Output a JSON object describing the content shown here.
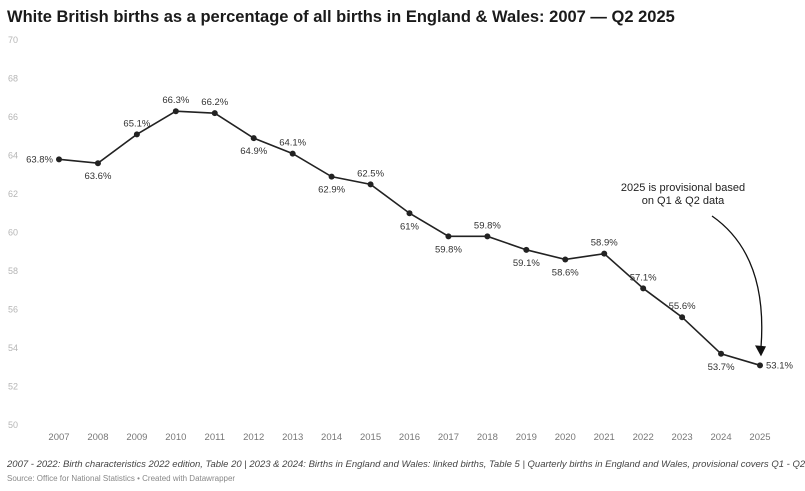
{
  "chart_data": {
    "type": "line",
    "title": "White British births as a percentage of all births in England & Wales: 2007 — Q2 2025",
    "categories": [
      "2007",
      "2008",
      "2009",
      "2010",
      "2011",
      "2012",
      "2013",
      "2014",
      "2015",
      "2016",
      "2017",
      "2018",
      "2019",
      "2020",
      "2021",
      "2022",
      "2023",
      "2024",
      "2025"
    ],
    "values": [
      63.8,
      63.6,
      65.1,
      66.3,
      66.2,
      64.9,
      64.1,
      62.9,
      62.5,
      61,
      59.8,
      59.8,
      59.1,
      58.6,
      58.9,
      57.1,
      55.6,
      53.7,
      53.1
    ],
    "data_labels": [
      "63.8%",
      "63.6%",
      "65.1%",
      "66.3%",
      "66.2%",
      "64.9%",
      "64.1%",
      "62.9%",
      "62.5%",
      "61%",
      "59.8%",
      "59.8%",
      "59.1%",
      "58.6%",
      "58.9%",
      "57.1%",
      "55.6%",
      "53.7%",
      "53.1%"
    ],
    "label_positions": [
      "left",
      "below",
      "above",
      "above",
      "above",
      "below",
      "above",
      "below",
      "above",
      "below",
      "below",
      "above",
      "below",
      "below",
      "above",
      "above",
      "above",
      "below",
      "right"
    ],
    "ylim": [
      50,
      70
    ],
    "yticks": [
      "50",
      "52",
      "54",
      "56",
      "58",
      "60",
      "62",
      "64",
      "66",
      "68",
      "70"
    ],
    "grid": false,
    "xlabel": "",
    "ylabel": "",
    "line_color": "#222222",
    "annotation": {
      "lines": [
        "2025 is provisional based",
        "on Q1 & Q2 data"
      ],
      "points_to": "2025"
    }
  },
  "notes": "2007 - 2022: Birth characteristics 2022 edition, Table 20 | 2023 & 2024: Births in England and Wales: linked births, Table 5 | Quarterly births in England and Wales, provisional covers Q1 - Q2",
  "source": "Source: Office for National Statistics • Created with Datawrapper"
}
